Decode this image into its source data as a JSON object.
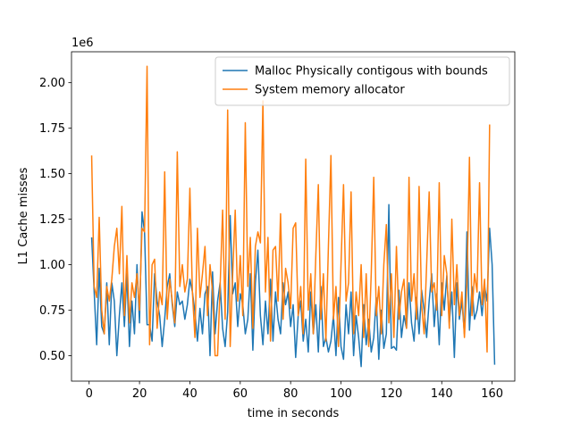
{
  "chart_data": {
    "type": "line",
    "xlabel": "time in seconds",
    "ylabel": "L1 Cache misses",
    "y_offset_label": "1e6",
    "x": [
      1,
      2,
      3,
      4,
      5,
      6,
      7,
      8,
      9,
      10,
      11,
      12,
      13,
      14,
      15,
      16,
      17,
      18,
      19,
      20,
      21,
      22,
      23,
      24,
      25,
      26,
      27,
      28,
      29,
      30,
      31,
      32,
      33,
      34,
      35,
      36,
      37,
      38,
      39,
      40,
      41,
      42,
      43,
      44,
      45,
      46,
      47,
      48,
      49,
      50,
      51,
      52,
      53,
      54,
      55,
      56,
      57,
      58,
      59,
      60,
      61,
      62,
      63,
      64,
      65,
      66,
      67,
      68,
      69,
      70,
      71,
      72,
      73,
      74,
      75,
      76,
      77,
      78,
      79,
      80,
      81,
      82,
      83,
      84,
      85,
      86,
      87,
      88,
      89,
      90,
      91,
      92,
      93,
      94,
      95,
      96,
      97,
      98,
      99,
      100,
      101,
      102,
      103,
      104,
      105,
      106,
      107,
      108,
      109,
      110,
      111,
      112,
      113,
      114,
      115,
      116,
      117,
      118,
      119,
      120,
      121,
      122,
      123,
      124,
      125,
      126,
      127,
      128,
      129,
      130,
      131,
      132,
      133,
      134,
      135,
      136,
      137,
      138,
      139,
      140,
      141,
      142,
      143,
      144,
      145,
      146,
      147,
      148,
      149,
      150,
      151,
      152,
      153,
      154,
      155,
      156,
      157,
      158,
      159,
      160,
      161
    ],
    "series": [
      {
        "name": "Malloc Physically contigous with bounds",
        "color": "#1f77b4",
        "values": [
          1.15,
          0.85,
          0.56,
          0.98,
          0.66,
          0.62,
          0.9,
          0.56,
          0.9,
          0.8,
          0.5,
          0.72,
          0.9,
          0.66,
          0.95,
          0.55,
          0.8,
          0.62,
          1.0,
          0.68,
          1.29,
          1.18,
          0.67,
          0.67,
          0.58,
          0.95,
          0.8,
          0.72,
          0.55,
          0.7,
          0.88,
          0.95,
          0.78,
          0.66,
          0.85,
          0.78,
          0.8,
          0.7,
          0.78,
          0.92,
          0.85,
          0.74,
          0.58,
          0.76,
          0.62,
          0.84,
          0.88,
          0.5,
          0.96,
          0.62,
          0.8,
          0.9,
          0.65,
          0.55,
          0.74,
          1.27,
          0.84,
          0.9,
          0.66,
          0.84,
          0.78,
          0.62,
          0.7,
          0.95,
          0.53,
          0.9,
          1.08,
          0.72,
          0.56,
          0.8,
          0.62,
          0.92,
          0.58,
          0.85,
          0.7,
          0.62,
          0.9,
          0.78,
          0.85,
          0.66,
          0.78,
          0.49,
          0.72,
          0.8,
          0.58,
          0.7,
          0.52,
          0.85,
          0.62,
          0.78,
          0.52,
          0.88,
          0.55,
          0.6,
          0.52,
          0.58,
          0.72,
          0.5,
          0.82,
          0.55,
          0.48,
          0.78,
          0.62,
          0.85,
          0.5,
          0.72,
          0.6,
          0.44,
          0.78,
          0.56,
          0.7,
          0.52,
          0.6,
          0.82,
          0.48,
          0.75,
          0.54,
          0.62,
          1.33,
          0.54,
          0.55,
          0.53,
          0.86,
          0.6,
          0.72,
          0.65,
          0.9,
          0.68,
          0.58,
          0.82,
          0.62,
          0.86,
          0.75,
          0.6,
          0.8,
          0.95,
          0.66,
          0.84,
          0.56,
          0.9,
          0.75,
          0.94,
          0.68,
          0.85,
          0.49,
          0.9,
          0.7,
          0.8,
          0.62,
          1.18,
          0.64,
          0.88,
          0.7,
          0.75,
          0.85,
          0.72,
          0.88,
          0.8,
          1.2,
          1.0,
          0.45
        ]
      },
      {
        "name": "System memory allocator",
        "color": "#ff7f0e",
        "values": [
          1.6,
          0.88,
          0.82,
          1.26,
          0.75,
          0.62,
          0.88,
          0.8,
          0.92,
          1.1,
          1.2,
          0.95,
          1.32,
          0.72,
          1.05,
          0.68,
          0.9,
          0.82,
          0.95,
          0.75,
          1.2,
          1.18,
          2.09,
          0.56,
          1.0,
          1.03,
          0.65,
          0.85,
          0.78,
          1.51,
          0.7,
          0.92,
          0.8,
          0.68,
          1.62,
          0.88,
          1.0,
          0.85,
          0.92,
          1.42,
          0.85,
          0.6,
          1.2,
          0.82,
          0.95,
          1.1,
          0.72,
          1.0,
          0.85,
          0.5,
          0.5,
          0.88,
          1.3,
          0.7,
          1.85,
          0.55,
          0.95,
          1.3,
          0.8,
          1.05,
          0.72,
          1.78,
          0.88,
          1.15,
          0.65,
          1.1,
          1.18,
          1.12,
          1.9,
          0.85,
          1.15,
          0.58,
          1.08,
          1.1,
          0.8,
          1.28,
          0.7,
          0.98,
          0.9,
          0.76,
          1.2,
          1.23,
          0.72,
          0.88,
          0.62,
          1.58,
          0.75,
          0.95,
          0.62,
          1.05,
          1.44,
          0.7,
          0.95,
          0.58,
          1.1,
          1.6,
          0.7,
          0.88,
          0.55,
          1.0,
          1.44,
          0.8,
          0.9,
          1.4,
          0.62,
          0.85,
          0.72,
          1.0,
          0.6,
          0.95,
          0.55,
          0.95,
          1.48,
          0.72,
          0.88,
          0.62,
          1.0,
          1.22,
          0.68,
          0.95,
          0.6,
          1.1,
          0.7,
          0.85,
          0.92,
          0.65,
          1.48,
          0.8,
          0.95,
          0.7,
          1.43,
          0.78,
          0.62,
          1.0,
          1.4,
          0.85,
          0.9,
          0.75,
          1.45,
          0.72,
          1.05,
          0.95,
          0.65,
          1.25,
          0.78,
          1.0,
          0.72,
          0.85,
          0.6,
          0.9,
          1.59,
          0.72,
          0.95,
          0.85,
          1.45,
          0.78,
          0.92,
          0.52,
          1.77,
          null,
          null
        ]
      }
    ],
    "xlim": [
      -7,
      169
    ],
    "xticks": [
      0,
      20,
      40,
      60,
      80,
      100,
      120,
      140,
      160
    ],
    "ylim": [
      0.36,
      2.17
    ],
    "yticks": [
      {
        "value": 0.5,
        "label": "0.50"
      },
      {
        "value": 0.75,
        "label": "0.75"
      },
      {
        "value": 1.0,
        "label": "1.00"
      },
      {
        "value": 1.25,
        "label": "1.25"
      },
      {
        "value": 1.5,
        "label": "1.50"
      },
      {
        "value": 1.75,
        "label": "1.75"
      },
      {
        "value": 2.0,
        "label": "2.00"
      }
    ],
    "legend": "upper right",
    "grid": false
  }
}
